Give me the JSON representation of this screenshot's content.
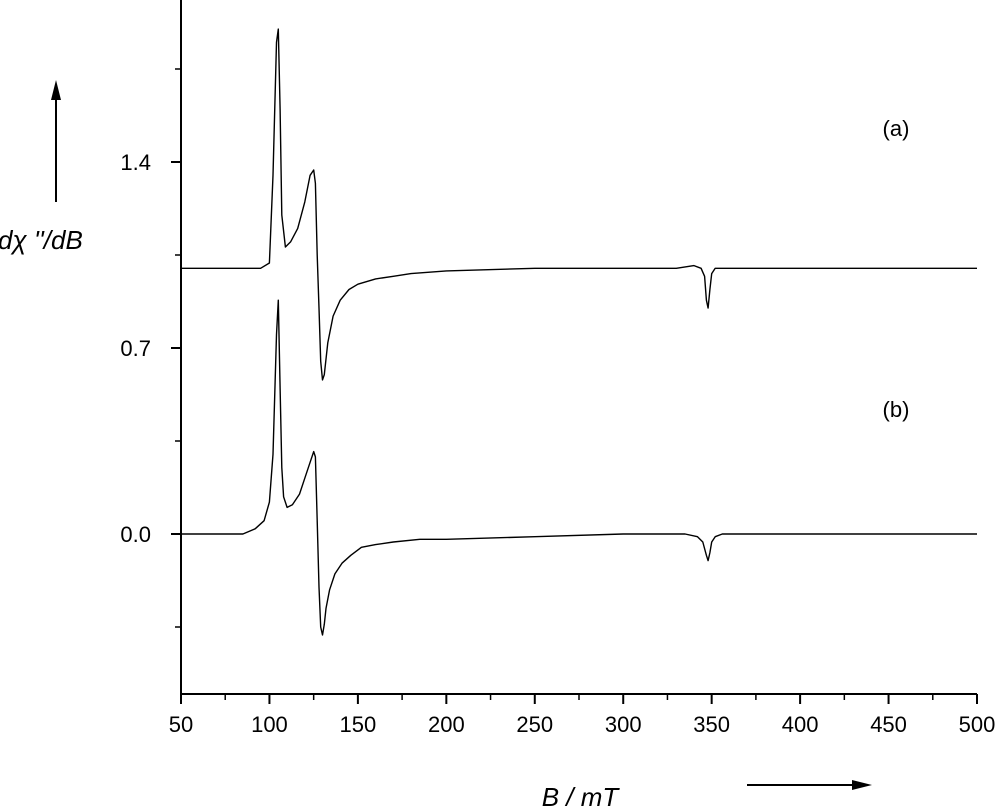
{
  "chart_data": {
    "type": "line",
    "xlabel": "B / mT",
    "ylabel": "dχ ''/dB",
    "xlim": [
      50,
      500
    ],
    "ylim": [
      -0.6,
      2.0
    ],
    "x_ticks": [
      "50",
      "100",
      "150",
      "200",
      "250",
      "300",
      "350",
      "400",
      "450",
      "500"
    ],
    "y_ticks": [
      "0.0",
      "0.7",
      "1.4"
    ],
    "grid": false,
    "legend": "none",
    "series": [
      {
        "name": "(a)",
        "x": [
          50,
          95,
          100,
          102,
          104,
          105,
          106,
          107,
          109,
          112,
          116,
          120,
          123,
          125,
          126,
          127,
          128,
          129,
          130,
          131,
          133,
          136,
          140,
          145,
          150,
          160,
          170,
          180,
          200,
          250,
          300,
          330,
          340,
          344,
          346,
          347,
          348,
          349,
          350,
          352,
          356,
          370,
          400,
          450,
          500
        ],
        "y": [
          1.0,
          1.0,
          1.02,
          1.35,
          1.85,
          1.9,
          1.6,
          1.2,
          1.08,
          1.1,
          1.15,
          1.25,
          1.35,
          1.37,
          1.32,
          1.05,
          0.85,
          0.65,
          0.58,
          0.6,
          0.72,
          0.82,
          0.88,
          0.92,
          0.94,
          0.96,
          0.97,
          0.98,
          0.99,
          1.0,
          1.0,
          1.0,
          1.01,
          1.0,
          0.97,
          0.88,
          0.85,
          0.92,
          0.98,
          1.0,
          1.0,
          1.0,
          1.0,
          1.0,
          1.0
        ]
      },
      {
        "name": "(b)",
        "x": [
          50,
          85,
          92,
          97,
          100,
          102,
          104,
          105,
          106,
          107,
          108,
          110,
          113,
          117,
          120,
          123,
          125,
          126,
          127,
          128,
          129,
          130,
          131,
          132,
          134,
          137,
          141,
          146,
          152,
          160,
          170,
          185,
          200,
          250,
          300,
          335,
          342,
          345,
          347,
          348,
          349,
          350,
          352,
          356,
          370,
          400,
          450,
          500
        ],
        "y": [
          0.0,
          0.0,
          0.02,
          0.05,
          0.12,
          0.3,
          0.75,
          0.88,
          0.55,
          0.25,
          0.14,
          0.1,
          0.11,
          0.15,
          0.21,
          0.27,
          0.31,
          0.29,
          0.05,
          -0.2,
          -0.35,
          -0.38,
          -0.34,
          -0.28,
          -0.21,
          -0.15,
          -0.11,
          -0.08,
          -0.05,
          -0.04,
          -0.03,
          -0.02,
          -0.02,
          -0.01,
          0.0,
          0.0,
          -0.01,
          -0.03,
          -0.08,
          -0.1,
          -0.07,
          -0.03,
          -0.01,
          0.0,
          0.0,
          0.0,
          0.0,
          0.0
        ]
      }
    ],
    "annotations": [
      "(a)",
      "(b)"
    ],
    "colors": {
      "line": "#000000",
      "axis": "#000000"
    }
  }
}
